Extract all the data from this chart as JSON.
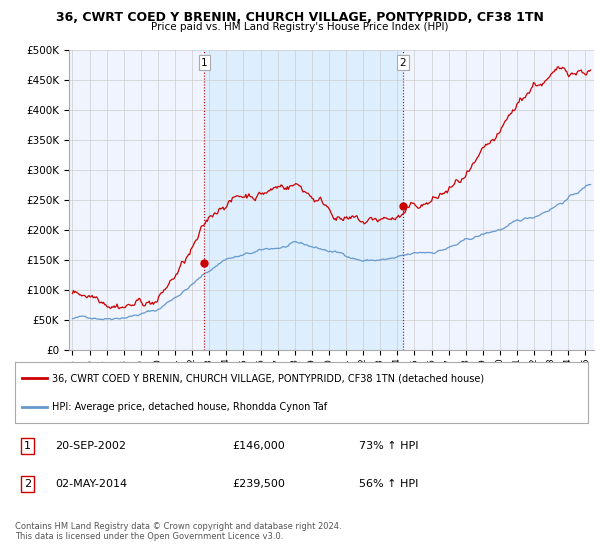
{
  "title": "36, CWRT COED Y BRENIN, CHURCH VILLAGE, PONTYPRIDD, CF38 1TN",
  "subtitle": "Price paid vs. HM Land Registry's House Price Index (HPI)",
  "ylim": [
    0,
    500000
  ],
  "yticks": [
    0,
    50000,
    100000,
    150000,
    200000,
    250000,
    300000,
    350000,
    400000,
    450000,
    500000
  ],
  "ytick_labels": [
    "£0",
    "£50K",
    "£100K",
    "£150K",
    "£200K",
    "£250K",
    "£300K",
    "£350K",
    "£400K",
    "£450K",
    "£500K"
  ],
  "xlim_start": 1994.8,
  "xlim_end": 2025.5,
  "red_color": "#cc0000",
  "blue_color": "#6699cc",
  "shade_color": "#ddeeff",
  "grid_color": "#cccccc",
  "bg_color": "#f0f4ff",
  "marker1_date": 2002.72,
  "marker1_value": 146000,
  "marker2_date": 2014.33,
  "marker2_value": 239500,
  "legend_line1": "36, CWRT COED Y BRENIN, CHURCH VILLAGE, PONTYPRIDD, CF38 1TN (detached house)",
  "legend_line2": "HPI: Average price, detached house, Rhondda Cynon Taf",
  "table_row1": [
    "1",
    "20-SEP-2002",
    "£146,000",
    "73% ↑ HPI"
  ],
  "table_row2": [
    "2",
    "02-MAY-2014",
    "£239,500",
    "56% ↑ HPI"
  ],
  "footer1": "Contains HM Land Registry data © Crown copyright and database right 2024.",
  "footer2": "This data is licensed under the Open Government Licence v3.0."
}
